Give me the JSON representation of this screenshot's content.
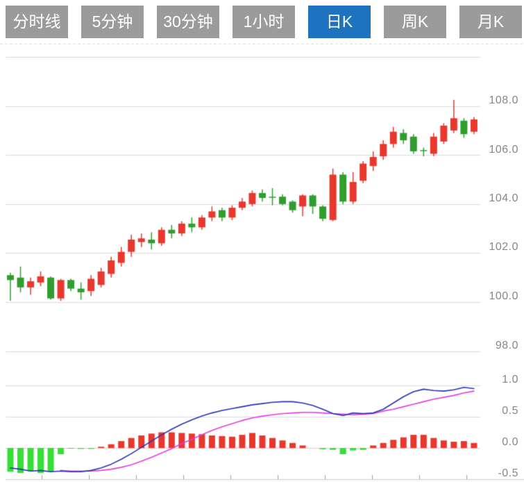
{
  "tabs": {
    "items": [
      {
        "label": "分时线",
        "active": false
      },
      {
        "label": "5分钟",
        "active": false
      },
      {
        "label": "30分钟",
        "active": false
      },
      {
        "label": "1小时",
        "active": false
      },
      {
        "label": "日K",
        "active": true
      },
      {
        "label": "周K",
        "active": false
      },
      {
        "label": "月K",
        "active": false
      }
    ]
  },
  "chart_data": {
    "type": "candlestick",
    "title": "",
    "subtitle": "",
    "panels": [
      "price-kline",
      "macd"
    ],
    "legend_position": "none",
    "grid": true,
    "price_axis": {
      "side": "right",
      "labels": [
        "108.0",
        "106.0",
        "104.0",
        "102.0",
        "100.0",
        "98.0"
      ],
      "range_shown": [
        97.0,
        110.0
      ]
    },
    "macd_axis": {
      "side": "right",
      "labels": [
        "1.0",
        "0.5",
        "0.0",
        "-0.5"
      ],
      "range_shown": [
        -0.5,
        1.0
      ]
    },
    "candles": {
      "count": 47,
      "open": [
        101.1,
        101.0,
        100.6,
        100.8,
        101.0,
        100.15,
        100.9,
        100.55,
        100.45,
        100.7,
        101.15,
        101.6,
        102.05,
        102.45,
        102.55,
        102.4,
        102.95,
        102.8,
        103.2,
        103.05,
        103.45,
        103.75,
        103.45,
        103.85,
        104.0,
        104.45,
        104.3,
        104.3,
        104.1,
        103.9,
        104.35,
        103.9,
        103.35,
        105.2,
        104.1,
        104.95,
        105.55,
        105.95,
        106.45,
        106.9,
        106.75,
        106.2,
        106.05,
        106.55,
        107.0,
        107.4,
        106.95
      ],
      "close": [
        100.9,
        100.6,
        100.85,
        101.05,
        100.15,
        100.9,
        100.55,
        100.4,
        100.95,
        101.25,
        101.7,
        102.05,
        102.55,
        102.6,
        102.4,
        102.95,
        102.8,
        103.2,
        103.05,
        103.45,
        103.7,
        103.45,
        103.85,
        104.1,
        104.45,
        104.25,
        104.28,
        104.0,
        103.75,
        104.35,
        103.9,
        103.4,
        105.2,
        104.1,
        104.9,
        105.65,
        105.92,
        106.45,
        106.95,
        106.6,
        106.15,
        106.18,
        106.75,
        107.2,
        107.5,
        106.85,
        107.45
      ],
      "high": [
        101.2,
        101.45,
        101.0,
        101.25,
        101.05,
        100.95,
        100.95,
        100.8,
        101.1,
        101.4,
        101.85,
        102.25,
        102.75,
        102.8,
        102.85,
        103.05,
        103.15,
        103.3,
        103.45,
        103.55,
        103.9,
        103.85,
        103.95,
        104.25,
        104.55,
        104.6,
        104.65,
        104.4,
        104.15,
        104.4,
        104.4,
        103.95,
        105.45,
        105.3,
        105.3,
        105.75,
        106.15,
        106.6,
        107.15,
        107.05,
        106.85,
        106.3,
        106.9,
        107.3,
        108.25,
        107.5,
        107.55
      ],
      "low": [
        100.05,
        100.4,
        100.3,
        100.65,
        100.1,
        100.05,
        100.45,
        100.1,
        100.25,
        100.6,
        101.0,
        101.45,
        101.85,
        102.25,
        102.15,
        102.3,
        102.6,
        102.7,
        102.85,
        102.95,
        103.3,
        103.3,
        103.35,
        103.75,
        103.9,
        104.1,
        103.95,
        103.95,
        103.65,
        103.5,
        103.6,
        103.3,
        103.3,
        104.0,
        104.0,
        104.85,
        105.35,
        105.8,
        106.3,
        106.45,
        106.05,
        105.95,
        105.95,
        106.45,
        106.9,
        106.7,
        106.85
      ]
    },
    "macd": {
      "hist": [
        -0.38,
        -0.4,
        -0.37,
        -0.4,
        -0.38,
        -0.1,
        -0.005,
        -0.015,
        -0.015,
        0.02,
        0.06,
        0.11,
        0.16,
        0.2,
        0.23,
        0.25,
        0.25,
        0.24,
        0.23,
        0.22,
        0.2,
        0.19,
        0.18,
        0.21,
        0.24,
        0.2,
        0.16,
        0.12,
        0.08,
        0.04,
        0.0,
        -0.02,
        -0.03,
        -0.1,
        -0.04,
        -0.03,
        0.04,
        0.08,
        0.13,
        0.17,
        0.21,
        0.21,
        0.16,
        0.12,
        0.1,
        0.11,
        0.08
      ],
      "dif": [
        -0.32,
        -0.34,
        -0.37,
        -0.36,
        -0.38,
        -0.37,
        -0.38,
        -0.38,
        -0.36,
        -0.32,
        -0.26,
        -0.18,
        -0.09,
        0.01,
        0.11,
        0.21,
        0.3,
        0.38,
        0.45,
        0.51,
        0.56,
        0.6,
        0.63,
        0.66,
        0.69,
        0.71,
        0.73,
        0.74,
        0.74,
        0.72,
        0.68,
        0.62,
        0.55,
        0.52,
        0.56,
        0.55,
        0.56,
        0.62,
        0.72,
        0.82,
        0.9,
        0.94,
        0.92,
        0.91,
        0.93,
        0.97,
        0.95
      ],
      "dea": [
        null,
        null,
        null,
        null,
        null,
        -0.36,
        -0.37,
        -0.37,
        -0.37,
        -0.36,
        -0.34,
        -0.31,
        -0.27,
        -0.21,
        -0.15,
        -0.08,
        -0.01,
        0.07,
        0.14,
        0.21,
        0.28,
        0.34,
        0.39,
        0.44,
        0.48,
        0.51,
        0.53,
        0.55,
        0.56,
        0.57,
        0.57,
        0.56,
        0.55,
        0.54,
        0.53,
        0.54,
        0.55,
        0.59,
        0.62,
        0.66,
        0.7,
        0.74,
        0.78,
        0.81,
        0.84,
        0.88,
        0.91
      ]
    },
    "colors": {
      "up": "#e8372c",
      "down": "#2f9e2f",
      "hist_up": "#e8372c",
      "hist_down": "#35df35",
      "dif_line": "#2533b4",
      "dea_line": "#e23ce2",
      "grid": "#dcdcdc",
      "zero_line": "#eec6c6",
      "axis_line": "#c8cbd6",
      "tick": "#9aa0b0",
      "axis_text": "#878787",
      "tab_bg": "#9b9b9b",
      "tab_active_bg": "#1e73be"
    }
  }
}
